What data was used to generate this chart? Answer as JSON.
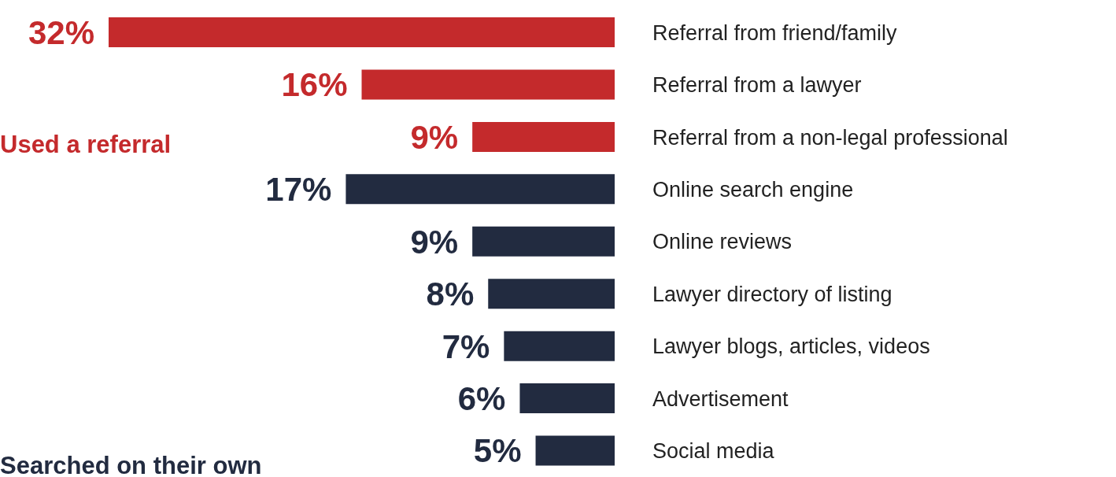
{
  "chart_data": {
    "type": "bar",
    "orientation": "horizontal",
    "categories": [
      "Referral from friend/family",
      "Referral from a lawyer",
      "Referral from a non-legal professional",
      "Online search engine",
      "Online reviews",
      "Lawyer directory of listing",
      "Lawyer blogs, articles, videos",
      "Advertisement",
      "Social media"
    ],
    "values": [
      32,
      16,
      9,
      17,
      9,
      8,
      7,
      6,
      5
    ],
    "colors": [
      "#c42a2c",
      "#c42a2c",
      "#c42a2c",
      "#222b40",
      "#222b40",
      "#222b40",
      "#222b40",
      "#222b40",
      "#222b40"
    ],
    "value_labels": [
      "32%",
      "16%",
      "9%",
      "17%",
      "9%",
      "8%",
      "7%",
      "6%",
      "5%"
    ],
    "tick_labels": "y",
    "annotations": [
      "Used a referral",
      "Searched on their own"
    ]
  }
}
